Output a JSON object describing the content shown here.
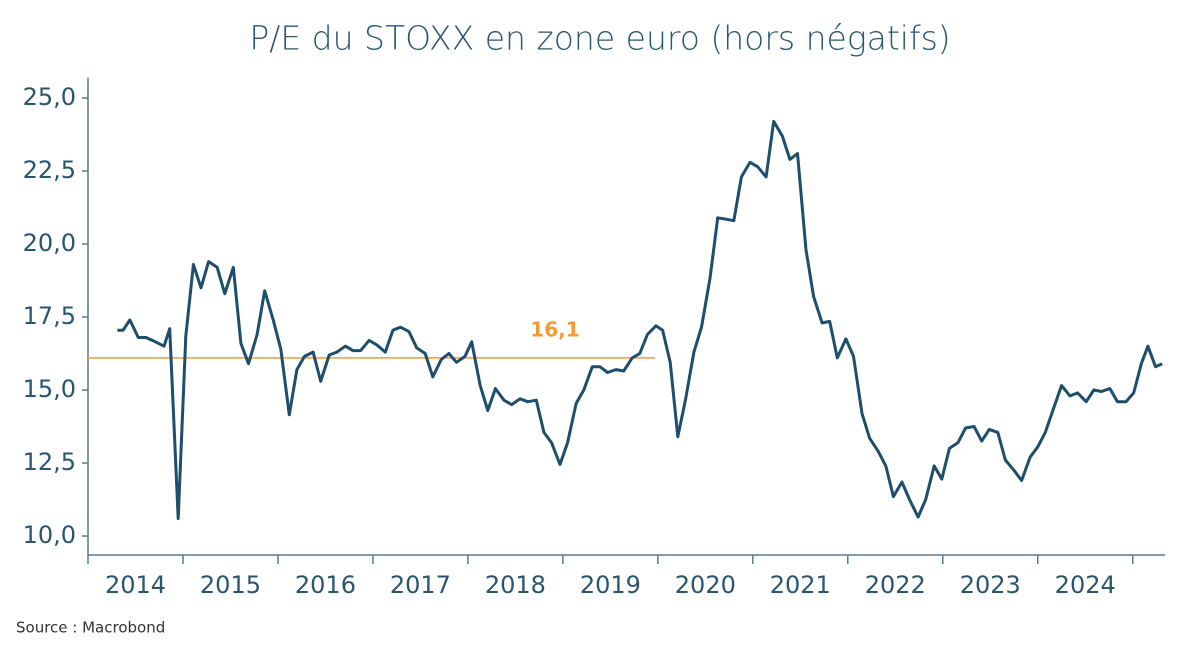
{
  "chart_data": {
    "type": "line",
    "title": "P/E du STOXX en zone euro (hors négatifs)",
    "source": "Source : Macrobond",
    "x": [
      2014.31,
      2014.37,
      2014.44,
      2014.53,
      2014.61,
      2014.71,
      2014.8,
      2014.86,
      2014.95,
      2015.03,
      2015.11,
      2015.19,
      2015.27,
      2015.36,
      2015.44,
      2015.53,
      2015.61,
      2015.69,
      2015.78,
      2015.86,
      2015.95,
      2016.03,
      2016.12,
      2016.2,
      2016.28,
      2016.37,
      2016.45,
      2016.54,
      2016.62,
      2016.71,
      2016.79,
      2016.87,
      2016.96,
      2017.04,
      2017.13,
      2017.21,
      2017.29,
      2017.38,
      2017.46,
      2017.55,
      2017.63,
      2017.72,
      2017.8,
      2017.88,
      2017.97,
      2018.04,
      2018.13,
      2018.21,
      2018.29,
      2018.38,
      2018.46,
      2018.55,
      2018.63,
      2018.72,
      2018.8,
      2018.88,
      2018.97,
      2019.05,
      2019.14,
      2019.22,
      2019.31,
      2019.39,
      2019.47,
      2019.56,
      2019.64,
      2019.73,
      2019.81,
      2019.89,
      2019.98,
      2020.05,
      2020.13,
      2020.21,
      2020.29,
      2020.38,
      2020.46,
      2020.55,
      2020.63,
      2020.72,
      2020.8,
      2020.88,
      2020.97,
      2021.05,
      2021.14,
      2021.22,
      2021.31,
      2021.39,
      2021.47,
      2021.56,
      2021.64,
      2021.73,
      2021.81,
      2021.89,
      2021.98,
      2022.06,
      2022.15,
      2022.23,
      2022.32,
      2022.4,
      2022.48,
      2022.57,
      2022.65,
      2022.74,
      2022.82,
      2022.91,
      2022.99,
      2023.07,
      2023.16,
      2023.24,
      2023.33,
      2023.41,
      2023.49,
      2023.58,
      2023.66,
      2023.75,
      2023.83,
      2023.92,
      2024.0,
      2024.08,
      2024.17,
      2024.25,
      2024.34,
      2024.42,
      2024.51,
      2024.59,
      2024.67,
      2024.76,
      2024.84,
      2024.93,
      2025.01,
      2025.09,
      2025.16,
      2025.24,
      2025.31
    ],
    "series": [
      {
        "name": "P/E",
        "color": "#1d4e6b",
        "values": [
          17.05,
          17.05,
          17.4,
          16.8,
          16.8,
          16.65,
          16.5,
          17.1,
          10.6,
          16.85,
          19.3,
          18.5,
          19.4,
          19.2,
          18.3,
          19.2,
          16.6,
          15.9,
          16.9,
          18.4,
          17.4,
          16.4,
          14.15,
          15.7,
          16.15,
          16.3,
          15.3,
          16.2,
          16.3,
          16.5,
          16.35,
          16.35,
          16.7,
          16.55,
          16.3,
          17.05,
          17.15,
          17.0,
          16.45,
          16.25,
          15.45,
          16.05,
          16.25,
          15.95,
          16.15,
          16.65,
          15.15,
          14.3,
          15.05,
          14.65,
          14.5,
          14.7,
          14.6,
          14.65,
          13.55,
          13.2,
          12.45,
          13.2,
          14.55,
          15.0,
          15.8,
          15.8,
          15.6,
          15.7,
          15.65,
          16.1,
          16.25,
          16.9,
          17.2,
          17.05,
          15.95,
          13.4,
          14.65,
          16.3,
          17.15,
          18.85,
          20.9,
          20.85,
          20.8,
          22.3,
          22.8,
          22.65,
          22.3,
          24.2,
          23.7,
          22.9,
          23.1,
          19.8,
          18.2,
          17.3,
          17.35,
          16.1,
          16.75,
          16.15,
          14.2,
          13.35,
          12.9,
          12.4,
          11.35,
          11.85,
          11.25,
          10.65,
          11.25,
          12.4,
          11.95,
          13.0,
          13.2,
          13.7,
          13.75,
          13.25,
          13.65,
          13.55,
          12.6,
          12.25,
          11.9,
          12.7,
          13.05,
          13.55,
          14.4,
          15.15,
          14.8,
          14.9,
          14.6,
          15.0,
          14.95,
          15.05,
          14.6,
          14.6,
          14.9,
          15.9,
          16.5,
          15.8,
          15.9
        ]
      }
    ],
    "reference_line": {
      "value": 16.1,
      "label": "16,1",
      "color": "#f39c34",
      "x": [
        2014,
        2019.97
      ]
    },
    "xlim": [
      2014,
      2025.34
    ],
    "xticks": [
      {
        "value": 2014.5,
        "label": "2014"
      },
      {
        "value": 2015.5,
        "label": "2015"
      },
      {
        "value": 2016.5,
        "label": "2016"
      },
      {
        "value": 2017.5,
        "label": "2017"
      },
      {
        "value": 2018.5,
        "label": "2018"
      },
      {
        "value": 2019.5,
        "label": "2019"
      },
      {
        "value": 2020.5,
        "label": "2020"
      },
      {
        "value": 2021.5,
        "label": "2021"
      },
      {
        "value": 2022.5,
        "label": "2022"
      },
      {
        "value": 2023.5,
        "label": "2023"
      },
      {
        "value": 2024.5,
        "label": "2024"
      }
    ],
    "x_tick_marks": [
      2014,
      2015,
      2016,
      2017,
      2018,
      2019,
      2020,
      2021,
      2022,
      2023,
      2024,
      2025
    ],
    "ylim": [
      9.35,
      25.7
    ],
    "yticks": [
      {
        "value": 10,
        "label": "10,0"
      },
      {
        "value": 12.5,
        "label": "12,5"
      },
      {
        "value": 15,
        "label": "15,0"
      },
      {
        "value": 17.5,
        "label": "17,5"
      },
      {
        "value": 20,
        "label": "20,0"
      },
      {
        "value": 22.5,
        "label": "22,5"
      },
      {
        "value": 25,
        "label": "25,0"
      }
    ],
    "grid": false
  }
}
